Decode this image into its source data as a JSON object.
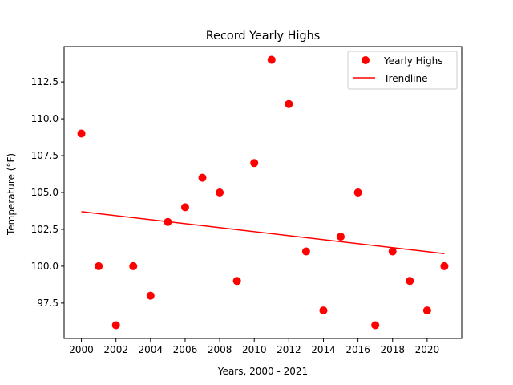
{
  "chart_data": {
    "type": "scatter",
    "title": "Record Yearly Highs",
    "xlabel": "Years, 2000 - 2021",
    "ylabel": "Temperature ($^\\circ$F)",
    "ylabel_display": "Temperature (°F)",
    "xlim": [
      1999.0,
      2022.0
    ],
    "ylim": [
      95.1,
      114.9
    ],
    "x_ticks": [
      2000,
      2002,
      2004,
      2006,
      2008,
      2010,
      2012,
      2014,
      2016,
      2018,
      2020
    ],
    "y_ticks": [
      97.5,
      100.0,
      102.5,
      105.0,
      107.5,
      110.0,
      112.5
    ],
    "y_tick_labels": [
      "97.5",
      "100.0",
      "102.5",
      "105.0",
      "107.5",
      "110.0",
      "112.5"
    ],
    "grid": false,
    "legend_position": "upper right",
    "series": [
      {
        "name": "Yearly Highs",
        "kind": "scatter",
        "color": "#ff0000",
        "x": [
          2000,
          2001,
          2002,
          2003,
          2004,
          2005,
          2006,
          2007,
          2008,
          2009,
          2010,
          2011,
          2012,
          2013,
          2014,
          2015,
          2016,
          2017,
          2018,
          2019,
          2020,
          2021
        ],
        "y": [
          109,
          100,
          96,
          100,
          98,
          103,
          104,
          106,
          105,
          99,
          107,
          114,
          111,
          101,
          97,
          102,
          105,
          96,
          101,
          99,
          97,
          100
        ]
      },
      {
        "name": "Trendline",
        "kind": "line",
        "color": "#ff0000",
        "x": [
          2000,
          2021
        ],
        "y": [
          103.7,
          100.85
        ]
      }
    ]
  }
}
